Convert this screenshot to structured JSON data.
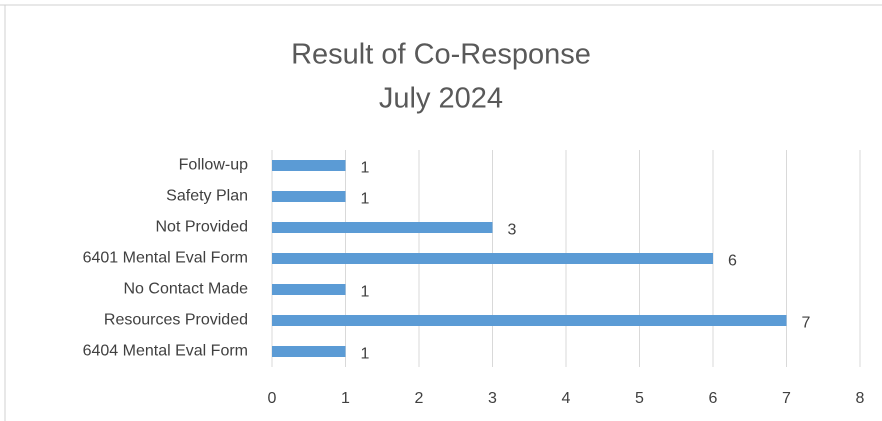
{
  "chart_data": {
    "type": "bar",
    "orientation": "horizontal",
    "title": "Result of Co-Response",
    "subtitle": "July 2024",
    "categories": [
      "Follow-up",
      "Safety Plan",
      "Not Provided",
      "6401 Mental Eval Form",
      "No Contact Made",
      "Resources Provided",
      "6404 Mental Eval Form"
    ],
    "values": [
      1,
      1,
      3,
      6,
      1,
      7,
      1
    ],
    "color": "#5b9bd5",
    "xlim": [
      0,
      8
    ],
    "xticks": [
      0,
      1,
      2,
      3,
      4,
      5,
      6,
      7,
      8
    ],
    "grid": true
  }
}
